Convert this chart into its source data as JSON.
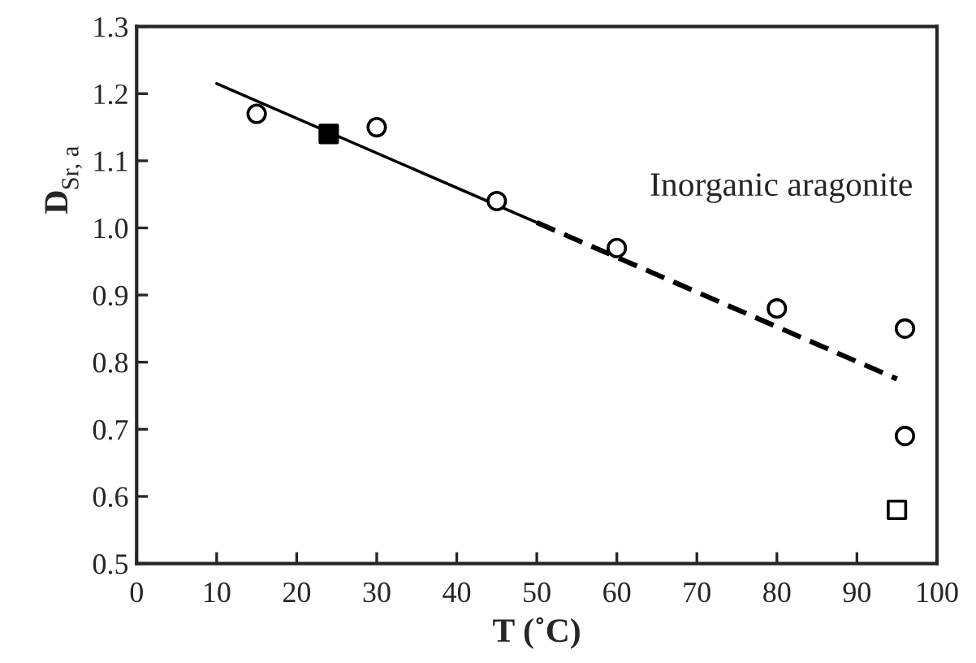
{
  "chart_data": {
    "type": "scatter",
    "xlabel": "T (˚C)",
    "ylabel": "D$_{Sr, a}$",
    "annotations": [
      "Inorganic aragonite"
    ],
    "xlim": [
      0,
      100
    ],
    "xticks": [
      0,
      10,
      20,
      30,
      40,
      50,
      60,
      70,
      80,
      90,
      100
    ],
    "ylim": [
      0.5,
      1.3
    ],
    "yticks": [
      {
        "value": 0.5,
        "label": "0.5"
      },
      {
        "value": 0.6,
        "label": "0.6"
      },
      {
        "value": 0.7,
        "label": "0.7"
      },
      {
        "value": 0.8,
        "label": "0.8"
      },
      {
        "value": 0.9,
        "label": "0.9"
      },
      {
        "value": 1.0,
        "label": "1.0"
      },
      {
        "value": 1.1,
        "label": "1.1"
      },
      {
        "value": 1.2,
        "label": "1.2"
      },
      {
        "value": 1.3,
        "label": "1.3"
      }
    ],
    "grid": false,
    "legend": false,
    "series": [
      {
        "marker": "circle",
        "color": "#ffffff",
        "x": [
          15,
          30,
          45,
          60,
          80,
          96,
          96
        ],
        "values": [
          1.17,
          1.15,
          1.04,
          0.97,
          0.88,
          0.85,
          0.69
        ]
      },
      {
        "marker": "square",
        "color": "#000000",
        "x": [
          24
        ],
        "values": [
          1.14
        ]
      },
      {
        "marker": "square",
        "color": "#ffffff",
        "x": [
          95
        ],
        "values": [
          0.58
        ]
      },
      {
        "type": "line",
        "line_style": "solid",
        "color": "#000000",
        "x": [
          10,
          50
        ],
        "values": [
          1.215,
          1.008
        ]
      },
      {
        "type": "line",
        "line_style": "dashed",
        "color": "#000000",
        "x": [
          50,
          95
        ],
        "values": [
          1.008,
          0.775
        ]
      }
    ]
  }
}
